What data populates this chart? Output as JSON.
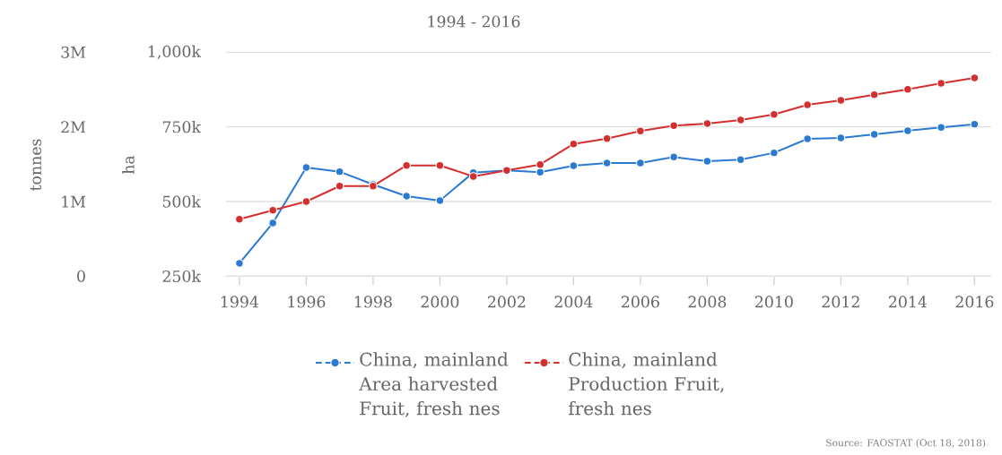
{
  "chart_data": {
    "type": "line",
    "title": "1994 - 2016",
    "ylabel": "tonnes",
    "y2label": "ha",
    "x": [
      1994,
      1995,
      1996,
      1997,
      1998,
      1999,
      2000,
      2001,
      2002,
      2003,
      2004,
      2005,
      2006,
      2007,
      2008,
      2009,
      2010,
      2011,
      2012,
      2013,
      2014,
      2015,
      2016
    ],
    "series": [
      {
        "name": "China, mainland Area harvested Fruit, fresh nes",
        "color": "#2a7ad2",
        "axis": "y2",
        "values": [
          293000,
          428000,
          614000,
          600000,
          557000,
          518000,
          503000,
          597000,
          604000,
          598000,
          620000,
          629000,
          629000,
          649000,
          635000,
          640000,
          663000,
          710000,
          713000,
          725000,
          737000,
          748000,
          759000
        ]
      },
      {
        "name": "China, mainland Production Fruit, fresh nes",
        "color": "#d32f2f",
        "values": [
          763000,
          883000,
          1000000,
          1207000,
          1207000,
          1483000,
          1483000,
          1336000,
          1416000,
          1495000,
          1771000,
          1843000,
          1944000,
          2016000,
          2044000,
          2092000,
          2167000,
          2296000,
          2356000,
          2431000,
          2503000,
          2584000,
          2656000
        ]
      }
    ],
    "xlim": [
      1993.6,
      2016.5
    ],
    "xticks": [
      1994,
      1996,
      1998,
      2000,
      2002,
      2004,
      2006,
      2008,
      2010,
      2012,
      2014,
      2016
    ],
    "ylim": [
      0,
      3000000
    ],
    "yticks": [
      0,
      {
        "value": 1000000,
        "label": "1M"
      },
      {
        "value": 2000000,
        "label": "2M"
      },
      {
        "value": 3000000,
        "label": "3M"
      }
    ],
    "y2lim": [
      250000,
      1000000
    ],
    "y2ticks": [
      {
        "value": 250000,
        "label": "250k"
      },
      {
        "value": 500000,
        "label": "500k"
      },
      {
        "value": 750000,
        "label": "750k"
      },
      {
        "value": 1000000,
        "label": "1,000k"
      }
    ],
    "grid": "y",
    "legend": "bottom",
    "marker": "circle",
    "line_style": "solid",
    "annotations": [
      "Source: FAOSTAT (Oct 18, 2018)"
    ]
  }
}
